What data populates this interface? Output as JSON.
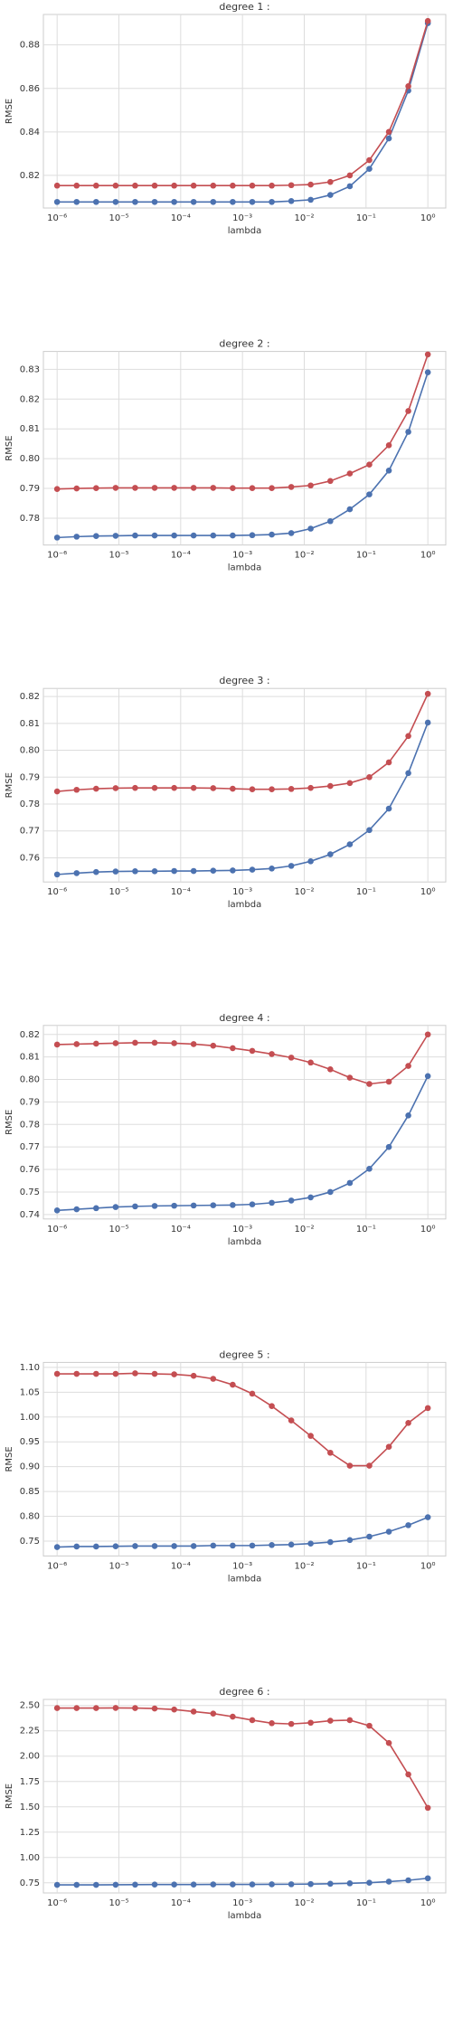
{
  "chart_data": [
    {
      "type": "line",
      "title": "degree 1 :",
      "xlabel": "lambda",
      "ylabel": "RMSE",
      "xscale": "log",
      "grid": true,
      "x": [
        1e-06,
        2.07e-06,
        4.28e-06,
        8.86e-06,
        1.83e-05,
        3.79e-05,
        7.85e-05,
        0.000162,
        0.000336,
        0.000695,
        0.00144,
        0.00298,
        0.00616,
        0.0127,
        0.0264,
        0.0546,
        0.113,
        0.234,
        0.483,
        1
      ],
      "xlim": [
        6e-07,
        1.95
      ],
      "xticks": [
        {
          "value": 1e-06,
          "label": "10⁻⁶"
        },
        {
          "value": 1e-05,
          "label": "10⁻⁵"
        },
        {
          "value": 0.0001,
          "label": "10⁻⁴"
        },
        {
          "value": 0.001,
          "label": "10⁻³"
        },
        {
          "value": 0.01,
          "label": "10⁻²"
        },
        {
          "value": 0.1,
          "label": "10⁻¹"
        },
        {
          "value": 1,
          "label": "10⁰"
        }
      ],
      "ylim": [
        0.805,
        0.894
      ],
      "yticks": [
        0.82,
        0.84,
        0.86,
        0.88
      ],
      "series": [
        {
          "color": "#4c72b0",
          "values": [
            0.8078,
            0.8078,
            0.8078,
            0.8078,
            0.8078,
            0.8078,
            0.8078,
            0.8078,
            0.8078,
            0.8078,
            0.8078,
            0.8078,
            0.8082,
            0.8088,
            0.811,
            0.815,
            0.823,
            0.837,
            0.859,
            0.89
          ]
        },
        {
          "color": "#c44e52",
          "values": [
            0.8153,
            0.8153,
            0.8153,
            0.8153,
            0.8153,
            0.8153,
            0.8153,
            0.8153,
            0.8153,
            0.8153,
            0.8153,
            0.8153,
            0.8155,
            0.8158,
            0.817,
            0.82,
            0.827,
            0.84,
            0.861,
            0.891
          ]
        }
      ]
    },
    {
      "type": "line",
      "title": "degree 2 :",
      "xlabel": "lambda",
      "ylabel": "RMSE",
      "xscale": "log",
      "grid": true,
      "x": [
        1e-06,
        2.07e-06,
        4.28e-06,
        8.86e-06,
        1.83e-05,
        3.79e-05,
        7.85e-05,
        0.000162,
        0.000336,
        0.000695,
        0.00144,
        0.00298,
        0.00616,
        0.0127,
        0.0264,
        0.0546,
        0.113,
        0.234,
        0.483,
        1
      ],
      "xlim": [
        6e-07,
        1.95
      ],
      "xticks": [
        {
          "value": 1e-06,
          "label": "10⁻⁶"
        },
        {
          "value": 1e-05,
          "label": "10⁻⁵"
        },
        {
          "value": 0.0001,
          "label": "10⁻⁴"
        },
        {
          "value": 0.001,
          "label": "10⁻³"
        },
        {
          "value": 0.01,
          "label": "10⁻²"
        },
        {
          "value": 0.1,
          "label": "10⁻¹"
        },
        {
          "value": 1,
          "label": "10⁰"
        }
      ],
      "ylim": [
        0.771,
        0.836
      ],
      "yticks": [
        0.78,
        0.79,
        {
          "value": 0.8,
          "label": "0.80"
        },
        0.81,
        0.82,
        0.83
      ],
      "series": [
        {
          "color": "#4c72b0",
          "values": [
            0.7735,
            0.7738,
            0.774,
            0.7741,
            0.7742,
            0.7742,
            0.7742,
            0.7742,
            0.7742,
            0.7742,
            0.7743,
            0.7745,
            0.775,
            0.7765,
            0.779,
            0.783,
            0.788,
            0.796,
            0.809,
            0.829
          ]
        },
        {
          "color": "#c44e52",
          "values": [
            0.7898,
            0.79,
            0.7901,
            0.7902,
            0.7902,
            0.7902,
            0.7902,
            0.7902,
            0.7902,
            0.7901,
            0.7901,
            0.7901,
            0.7905,
            0.791,
            0.7925,
            0.795,
            0.798,
            0.8045,
            0.816,
            0.835
          ]
        }
      ]
    },
    {
      "type": "line",
      "title": "degree 3 :",
      "xlabel": "lambda",
      "ylabel": "RMSE",
      "xscale": "log",
      "grid": true,
      "x": [
        1e-06,
        2.07e-06,
        4.28e-06,
        8.86e-06,
        1.83e-05,
        3.79e-05,
        7.85e-05,
        0.000162,
        0.000336,
        0.000695,
        0.00144,
        0.00298,
        0.00616,
        0.0127,
        0.0264,
        0.0546,
        0.113,
        0.234,
        0.483,
        1
      ],
      "xlim": [
        6e-07,
        1.95
      ],
      "xticks": [
        {
          "value": 1e-06,
          "label": "10⁻⁶"
        },
        {
          "value": 1e-05,
          "label": "10⁻⁵"
        },
        {
          "value": 0.0001,
          "label": "10⁻⁴"
        },
        {
          "value": 0.001,
          "label": "10⁻³"
        },
        {
          "value": 0.01,
          "label": "10⁻²"
        },
        {
          "value": 0.1,
          "label": "10⁻¹"
        },
        {
          "value": 1,
          "label": "10⁰"
        }
      ],
      "ylim": [
        0.751,
        0.823
      ],
      "yticks": [
        0.76,
        0.77,
        0.78,
        0.79,
        {
          "value": 0.8,
          "label": "0.80"
        },
        0.81,
        0.82
      ],
      "series": [
        {
          "color": "#4c72b0",
          "values": [
            0.7538,
            0.7543,
            0.7547,
            0.7549,
            0.755,
            0.755,
            0.7551,
            0.7551,
            0.7552,
            0.7553,
            0.7556,
            0.756,
            0.757,
            0.7587,
            0.7613,
            0.765,
            0.7703,
            0.7783,
            0.7915,
            0.8103
          ]
        },
        {
          "color": "#c44e52",
          "values": [
            0.7847,
            0.7853,
            0.7857,
            0.7859,
            0.786,
            0.786,
            0.786,
            0.786,
            0.7859,
            0.7857,
            0.7855,
            0.7855,
            0.7856,
            0.786,
            0.7867,
            0.7878,
            0.79,
            0.7955,
            0.8053,
            0.821
          ]
        }
      ]
    },
    {
      "type": "line",
      "title": "degree 4 :",
      "xlabel": "lambda",
      "ylabel": "RMSE",
      "xscale": "log",
      "grid": true,
      "x": [
        1e-06,
        2.07e-06,
        4.28e-06,
        8.86e-06,
        1.83e-05,
        3.79e-05,
        7.85e-05,
        0.000162,
        0.000336,
        0.000695,
        0.00144,
        0.00298,
        0.00616,
        0.0127,
        0.0264,
        0.0546,
        0.113,
        0.234,
        0.483,
        1
      ],
      "xlim": [
        6e-07,
        1.95
      ],
      "xticks": [
        {
          "value": 1e-06,
          "label": "10⁻⁶"
        },
        {
          "value": 1e-05,
          "label": "10⁻⁵"
        },
        {
          "value": 0.0001,
          "label": "10⁻⁴"
        },
        {
          "value": 0.001,
          "label": "10⁻³"
        },
        {
          "value": 0.01,
          "label": "10⁻²"
        },
        {
          "value": 0.1,
          "label": "10⁻¹"
        },
        {
          "value": 1,
          "label": "10⁰"
        }
      ],
      "ylim": [
        0.738,
        0.824
      ],
      "yticks": [
        0.74,
        0.75,
        0.76,
        0.77,
        0.78,
        0.79,
        {
          "value": 0.8,
          "label": "0.80"
        },
        0.81,
        0.82
      ],
      "series": [
        {
          "color": "#4c72b0",
          "values": [
            0.7418,
            0.7423,
            0.7428,
            0.7433,
            0.7436,
            0.7438,
            0.7439,
            0.744,
            0.7441,
            0.7442,
            0.7445,
            0.7452,
            0.7462,
            0.7476,
            0.75,
            0.754,
            0.7603,
            0.77,
            0.784,
            0.8015
          ]
        },
        {
          "color": "#c44e52",
          "values": [
            0.8155,
            0.8157,
            0.8159,
            0.8161,
            0.8163,
            0.8163,
            0.8161,
            0.8157,
            0.815,
            0.8139,
            0.8127,
            0.8113,
            0.8097,
            0.8075,
            0.8045,
            0.8008,
            0.798,
            0.799,
            0.806,
            0.82
          ]
        }
      ]
    },
    {
      "type": "line",
      "title": "degree 5 :",
      "xlabel": "lambda",
      "ylabel": "RMSE",
      "xscale": "log",
      "grid": true,
      "x": [
        1e-06,
        2.07e-06,
        4.28e-06,
        8.86e-06,
        1.83e-05,
        3.79e-05,
        7.85e-05,
        0.000162,
        0.000336,
        0.000695,
        0.00144,
        0.00298,
        0.00616,
        0.0127,
        0.0264,
        0.0546,
        0.113,
        0.234,
        0.483,
        1
      ],
      "xlim": [
        6e-07,
        1.95
      ],
      "xticks": [
        {
          "value": 1e-06,
          "label": "10⁻⁶"
        },
        {
          "value": 1e-05,
          "label": "10⁻⁵"
        },
        {
          "value": 0.0001,
          "label": "10⁻⁴"
        },
        {
          "value": 0.001,
          "label": "10⁻³"
        },
        {
          "value": 0.01,
          "label": "10⁻²"
        },
        {
          "value": 0.1,
          "label": "10⁻¹"
        },
        {
          "value": 1,
          "label": "10⁰"
        }
      ],
      "ylim": [
        0.72,
        1.11
      ],
      "yticks": [
        0.75,
        {
          "value": 0.8,
          "label": "0.80"
        },
        0.85,
        {
          "value": 0.9,
          "label": "0.90"
        },
        0.95,
        {
          "value": 1,
          "label": "1.00"
        },
        1.05,
        {
          "value": 1.1,
          "label": "1.10"
        }
      ],
      "series": [
        {
          "color": "#4c72b0",
          "values": [
            0.738,
            0.739,
            0.739,
            0.7395,
            0.74,
            0.74,
            0.74,
            0.74,
            0.741,
            0.741,
            0.741,
            0.742,
            0.743,
            0.745,
            0.748,
            0.752,
            0.759,
            0.769,
            0.782,
            0.798
          ]
        },
        {
          "color": "#c44e52",
          "values": [
            1.087,
            1.087,
            1.087,
            1.087,
            1.088,
            1.087,
            1.086,
            1.083,
            1.077,
            1.065,
            1.047,
            1.022,
            0.993,
            0.962,
            0.928,
            0.902,
            0.902,
            0.94,
            0.988,
            1.018
          ]
        }
      ]
    },
    {
      "type": "line",
      "title": "degree 6 :",
      "xlabel": "lambda",
      "ylabel": "RMSE",
      "xscale": "log",
      "grid": true,
      "x": [
        1e-06,
        2.07e-06,
        4.28e-06,
        8.86e-06,
        1.83e-05,
        3.79e-05,
        7.85e-05,
        0.000162,
        0.000336,
        0.000695,
        0.00144,
        0.00298,
        0.00616,
        0.0127,
        0.0264,
        0.0546,
        0.113,
        0.234,
        0.483,
        1
      ],
      "xlim": [
        6e-07,
        1.95
      ],
      "xticks": [
        {
          "value": 1e-06,
          "label": "10⁻⁶"
        },
        {
          "value": 1e-05,
          "label": "10⁻⁵"
        },
        {
          "value": 0.0001,
          "label": "10⁻⁴"
        },
        {
          "value": 0.001,
          "label": "10⁻³"
        },
        {
          "value": 0.01,
          "label": "10⁻²"
        },
        {
          "value": 0.1,
          "label": "10⁻¹"
        },
        {
          "value": 1,
          "label": "10⁰"
        }
      ],
      "ylim": [
        0.65,
        2.56
      ],
      "yticks": [
        0.75,
        {
          "value": 1,
          "label": "1.00"
        },
        1.25,
        {
          "value": 1.5,
          "label": "1.50"
        },
        1.75,
        {
          "value": 2,
          "label": "2.00"
        },
        2.25,
        {
          "value": 2.5,
          "label": "2.50"
        }
      ],
      "series": [
        {
          "color": "#4c72b0",
          "values": [
            0.73,
            0.73,
            0.73,
            0.731,
            0.732,
            0.733,
            0.733,
            0.733,
            0.734,
            0.734,
            0.734,
            0.735,
            0.736,
            0.738,
            0.741,
            0.745,
            0.751,
            0.762,
            0.775,
            0.795
          ]
        },
        {
          "color": "#c44e52",
          "values": [
            2.475,
            2.475,
            2.475,
            2.476,
            2.475,
            2.47,
            2.46,
            2.44,
            2.42,
            2.39,
            2.355,
            2.325,
            2.318,
            2.33,
            2.35,
            2.355,
            2.3,
            2.13,
            1.82,
            1.49
          ]
        }
      ]
    }
  ]
}
